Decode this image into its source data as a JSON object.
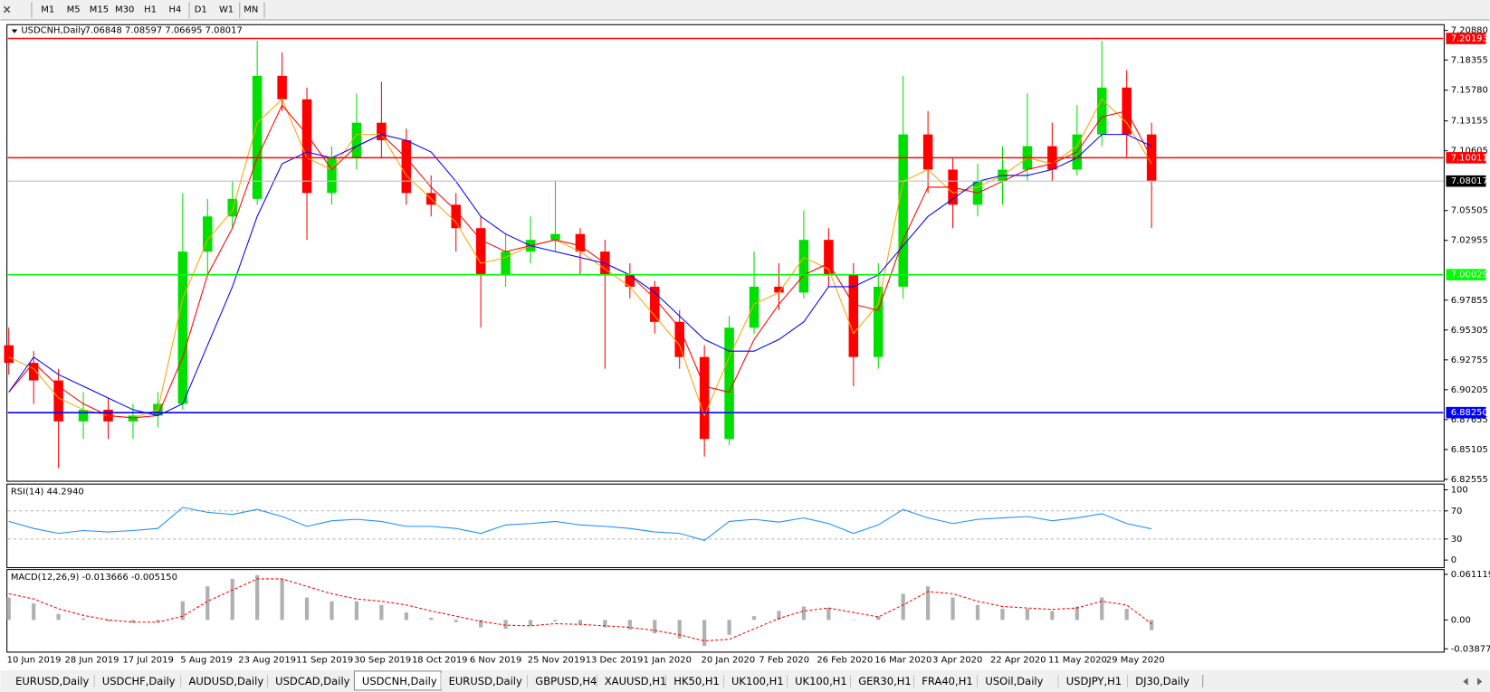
{
  "toolbar": {
    "timeframes": [
      "M1",
      "M5",
      "M15",
      "M30",
      "H1",
      "H4",
      "D1",
      "W1",
      "MN"
    ]
  },
  "tabs": {
    "items": [
      "EURUSD,Daily",
      "USDCHF,Daily",
      "AUDUSD,Daily",
      "USDCAD,Daily",
      "USDCNH,Daily",
      "EURUSD,Daily",
      "GBPUSD,H4",
      "XAUUSD,H1",
      "HK50,H1",
      "UK100,H1",
      "UK100,H1",
      "GER30,H1",
      "FRA40,H1",
      "USOil,Daily",
      "USDJPY,H1",
      "DJ30,Daily"
    ],
    "active": 4
  },
  "chart_data": {
    "type": "candlestick",
    "title": "USDCNH,Daily",
    "ohlc": "7.06848 7.08597 7.06695 7.08017",
    "bull_color": "#00e000",
    "bear_color": "#ff0000",
    "grid": false,
    "x_labels": [
      "10 Jun 2019",
      "28 Jun 2019",
      "17 Jul 2019",
      "5 Aug 2019",
      "23 Aug 2019",
      "11 Sep 2019",
      "30 Sep 2019",
      "18 Oct 2019",
      "6 Nov 2019",
      "25 Nov 2019",
      "13 Dec 2019",
      "1 Jan 2020",
      "20 Jan 2020",
      "7 Feb 2020",
      "26 Feb 2020",
      "16 Mar 2020",
      "3 Apr 2020",
      "22 Apr 2020",
      "11 May 2020",
      "29 May 2020"
    ],
    "candles": [
      [
        6.94,
        6.955,
        6.915,
        6.925
      ],
      [
        6.925,
        6.935,
        6.89,
        6.91
      ],
      [
        6.91,
        6.92,
        6.835,
        6.875
      ],
      [
        6.875,
        6.9,
        6.86,
        6.885
      ],
      [
        6.885,
        6.895,
        6.86,
        6.875
      ],
      [
        6.875,
        6.89,
        6.86,
        6.88
      ],
      [
        6.88,
        6.9,
        6.87,
        6.89
      ],
      [
        6.89,
        7.07,
        6.885,
        7.02
      ],
      [
        7.02,
        7.065,
        7.0,
        7.05
      ],
      [
        7.05,
        7.08,
        7.04,
        7.065
      ],
      [
        7.065,
        7.2,
        7.06,
        7.17
      ],
      [
        7.17,
        7.19,
        7.14,
        7.15
      ],
      [
        7.15,
        7.16,
        7.03,
        7.07
      ],
      [
        7.07,
        7.11,
        7.06,
        7.1
      ],
      [
        7.1,
        7.155,
        7.09,
        7.13
      ],
      [
        7.13,
        7.165,
        7.1,
        7.115
      ],
      [
        7.115,
        7.125,
        7.06,
        7.07
      ],
      [
        7.07,
        7.085,
        7.05,
        7.06
      ],
      [
        7.06,
        7.07,
        7.02,
        7.04
      ],
      [
        7.04,
        7.05,
        6.955,
        7.0
      ],
      [
        7.0,
        7.035,
        6.99,
        7.02
      ],
      [
        7.02,
        7.05,
        7.01,
        7.03
      ],
      [
        7.03,
        7.08,
        7.02,
        7.035
      ],
      [
        7.035,
        7.04,
        7.0,
        7.02
      ],
      [
        7.02,
        7.03,
        6.92,
        7.0
      ],
      [
        7.0,
        7.01,
        6.98,
        6.99
      ],
      [
        6.99,
        6.995,
        6.95,
        6.96
      ],
      [
        6.96,
        6.97,
        6.92,
        6.93
      ],
      [
        6.93,
        6.94,
        6.845,
        6.86
      ],
      [
        6.86,
        6.965,
        6.855,
        6.955
      ],
      [
        6.955,
        7.02,
        6.95,
        6.99
      ],
      [
        6.99,
        7.01,
        6.97,
        6.985
      ],
      [
        6.985,
        7.055,
        6.98,
        7.03
      ],
      [
        7.03,
        7.04,
        6.99,
        7.0
      ],
      [
        7.0,
        7.01,
        6.905,
        6.93
      ],
      [
        6.93,
        7.01,
        6.92,
        6.99
      ],
      [
        6.99,
        7.17,
        6.98,
        7.12
      ],
      [
        7.12,
        7.14,
        7.07,
        7.09
      ],
      [
        7.09,
        7.1,
        7.04,
        7.06
      ],
      [
        7.06,
        7.095,
        7.05,
        7.08
      ],
      [
        7.08,
        7.11,
        7.06,
        7.09
      ],
      [
        7.09,
        7.155,
        7.08,
        7.11
      ],
      [
        7.11,
        7.13,
        7.08,
        7.09
      ],
      [
        7.09,
        7.145,
        7.085,
        7.12
      ],
      [
        7.12,
        7.2,
        7.11,
        7.16
      ],
      [
        7.16,
        7.175,
        7.1,
        7.12
      ],
      [
        7.12,
        7.13,
        7.04,
        7.08017
      ]
    ],
    "series": [
      {
        "color": "#ffa500",
        "values": [
          6.93,
          6.92,
          6.895,
          6.885,
          6.88,
          6.878,
          6.885,
          6.98,
          7.03,
          7.055,
          7.13,
          7.15,
          7.1,
          7.09,
          7.12,
          7.12,
          7.085,
          7.065,
          7.045,
          7.01,
          7.015,
          7.025,
          7.03,
          7.02,
          7.005,
          6.99,
          6.965,
          6.94,
          6.88,
          6.93,
          6.975,
          6.985,
          7.015,
          7.005,
          6.95,
          6.975,
          7.08,
          7.09,
          7.07,
          7.075,
          7.085,
          7.1,
          7.095,
          7.11,
          7.15,
          7.13,
          7.095
        ]
      },
      {
        "color": "#ff0000",
        "values": [
          6.9,
          6.925,
          6.905,
          6.89,
          6.88,
          6.878,
          6.88,
          6.93,
          7.0,
          7.04,
          7.1,
          7.145,
          7.12,
          7.09,
          7.11,
          7.12,
          7.1,
          7.075,
          7.055,
          7.03,
          7.02,
          7.025,
          7.03,
          7.025,
          7.01,
          7.0,
          6.98,
          6.955,
          6.905,
          6.9,
          6.945,
          6.975,
          7.0,
          7.01,
          6.975,
          6.97,
          7.03,
          7.075,
          7.075,
          7.07,
          7.08,
          7.09,
          7.095,
          7.105,
          7.135,
          7.14,
          7.1
        ]
      },
      {
        "color": "#0000ff",
        "values": [
          6.9,
          6.93,
          6.915,
          6.905,
          6.895,
          6.885,
          6.88,
          6.89,
          6.94,
          6.99,
          7.05,
          7.095,
          7.105,
          7.1,
          7.11,
          7.12,
          7.115,
          7.105,
          7.08,
          7.05,
          7.035,
          7.025,
          7.02,
          7.015,
          7.01,
          7.0,
          6.985,
          6.965,
          6.945,
          6.935,
          6.935,
          6.945,
          6.96,
          6.99,
          6.99,
          7.0,
          7.025,
          7.05,
          7.065,
          7.08,
          7.085,
          7.085,
          7.09,
          7.1,
          7.12,
          7.12,
          7.11
        ]
      }
    ],
    "ylim": [
      6.8239,
      7.2137
    ],
    "yticks": [
      {
        "value": 7.2088,
        "label": "7.20880"
      },
      7.18355,
      {
        "value": 7.1578,
        "label": "7.15780"
      },
      7.13155,
      7.10605,
      7.05505,
      7.02955,
      6.97855,
      6.95305,
      6.92755,
      6.90205,
      6.87655,
      6.85105,
      6.82555
    ],
    "hlines": [
      {
        "value": 7.20193,
        "color": "#ff0000"
      },
      {
        "value": 7.10011,
        "color": "#ff0000"
      },
      {
        "value": 7.08017,
        "color": "#c0c0c0",
        "box": "#000000"
      },
      {
        "value": 7.00029,
        "color": "#00ff00"
      },
      {
        "value": 6.8825,
        "label": "6.88250",
        "color": "#0000ff"
      }
    ],
    "rsi": {
      "title": "RSI(14) 44.2940",
      "color": "#1e90ff",
      "values": [
        55,
        45,
        38,
        42,
        40,
        42,
        45,
        75,
        68,
        65,
        72,
        62,
        48,
        56,
        58,
        55,
        48,
        48,
        45,
        38,
        50,
        52,
        55,
        50,
        48,
        45,
        40,
        38,
        28,
        55,
        58,
        54,
        60,
        52,
        38,
        50,
        72,
        60,
        52,
        58,
        60,
        62,
        56,
        60,
        66,
        52,
        44.294
      ],
      "ylim": [
        -10.8,
        108.1
      ],
      "yticks": [
        100,
        70,
        30,
        0
      ],
      "levels": [
        70,
        30
      ]
    },
    "macd": {
      "title": "MACD(12,26,9) -0.013666 -0.005150",
      "hist_color": "#b0b0b0",
      "signal_color": "#ff0000",
      "hist": [
        0.03,
        0.022,
        0.008,
        0.002,
        -0.002,
        -0.004,
        -0.003,
        0.025,
        0.045,
        0.055,
        0.06,
        0.055,
        0.03,
        0.025,
        0.025,
        0.02,
        0.01,
        0.003,
        -0.003,
        -0.01,
        -0.012,
        -0.008,
        -0.002,
        -0.006,
        -0.01,
        -0.013,
        -0.018,
        -0.025,
        -0.035,
        -0.02,
        0.005,
        0.012,
        0.018,
        0.016,
        0.0,
        0.005,
        0.035,
        0.045,
        0.03,
        0.02,
        0.015,
        0.015,
        0.012,
        0.018,
        0.03,
        0.015,
        -0.013666
      ],
      "signal": [
        0.035,
        0.028,
        0.015,
        0.006,
        0.0,
        -0.003,
        -0.003,
        0.005,
        0.025,
        0.04,
        0.055,
        0.055,
        0.045,
        0.035,
        0.028,
        0.025,
        0.02,
        0.012,
        0.005,
        -0.002,
        -0.007,
        -0.008,
        -0.005,
        -0.006,
        -0.008,
        -0.01,
        -0.014,
        -0.02,
        -0.028,
        -0.026,
        -0.012,
        0.002,
        0.012,
        0.016,
        0.01,
        0.004,
        0.02,
        0.038,
        0.035,
        0.025,
        0.018,
        0.016,
        0.014,
        0.016,
        0.025,
        0.02,
        -0.00515
      ],
      "ylim": [
        -0.0432,
        0.0675
      ],
      "yticks": [
        0.061119,
        {
          "value": 0,
          "label": "0.00"
        },
        -0.038777
      ]
    }
  }
}
